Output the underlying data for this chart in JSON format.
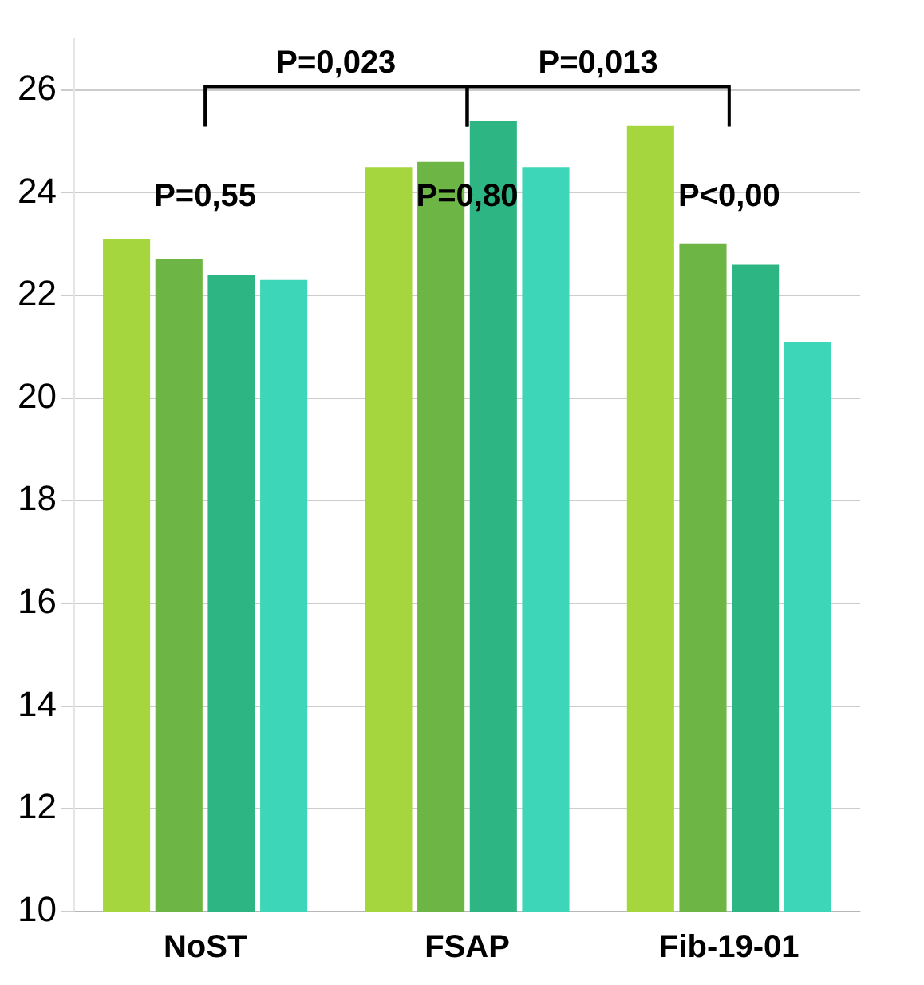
{
  "chart_data": {
    "type": "bar",
    "categories": [
      "NoST",
      "FSAP",
      "Fib-19-01"
    ],
    "series": [
      {
        "color": "#a6d63e",
        "values": [
          23.1,
          24.5,
          25.3
        ]
      },
      {
        "color": "#6db544",
        "values": [
          22.7,
          24.6,
          23.0
        ]
      },
      {
        "color": "#2eb584",
        "values": [
          22.4,
          25.4,
          22.6
        ]
      },
      {
        "color": "#3dd6b8",
        "values": [
          22.3,
          24.5,
          21.1
        ]
      }
    ],
    "ylim": [
      10,
      27
    ],
    "yticks": [
      10,
      12,
      14,
      16,
      18,
      20,
      22,
      24,
      26
    ],
    "grid": "y",
    "legend": false,
    "annotations": [
      "P=0,023",
      "P=0,013",
      "P=0,55",
      "P=0,80",
      "P<0,00"
    ]
  }
}
